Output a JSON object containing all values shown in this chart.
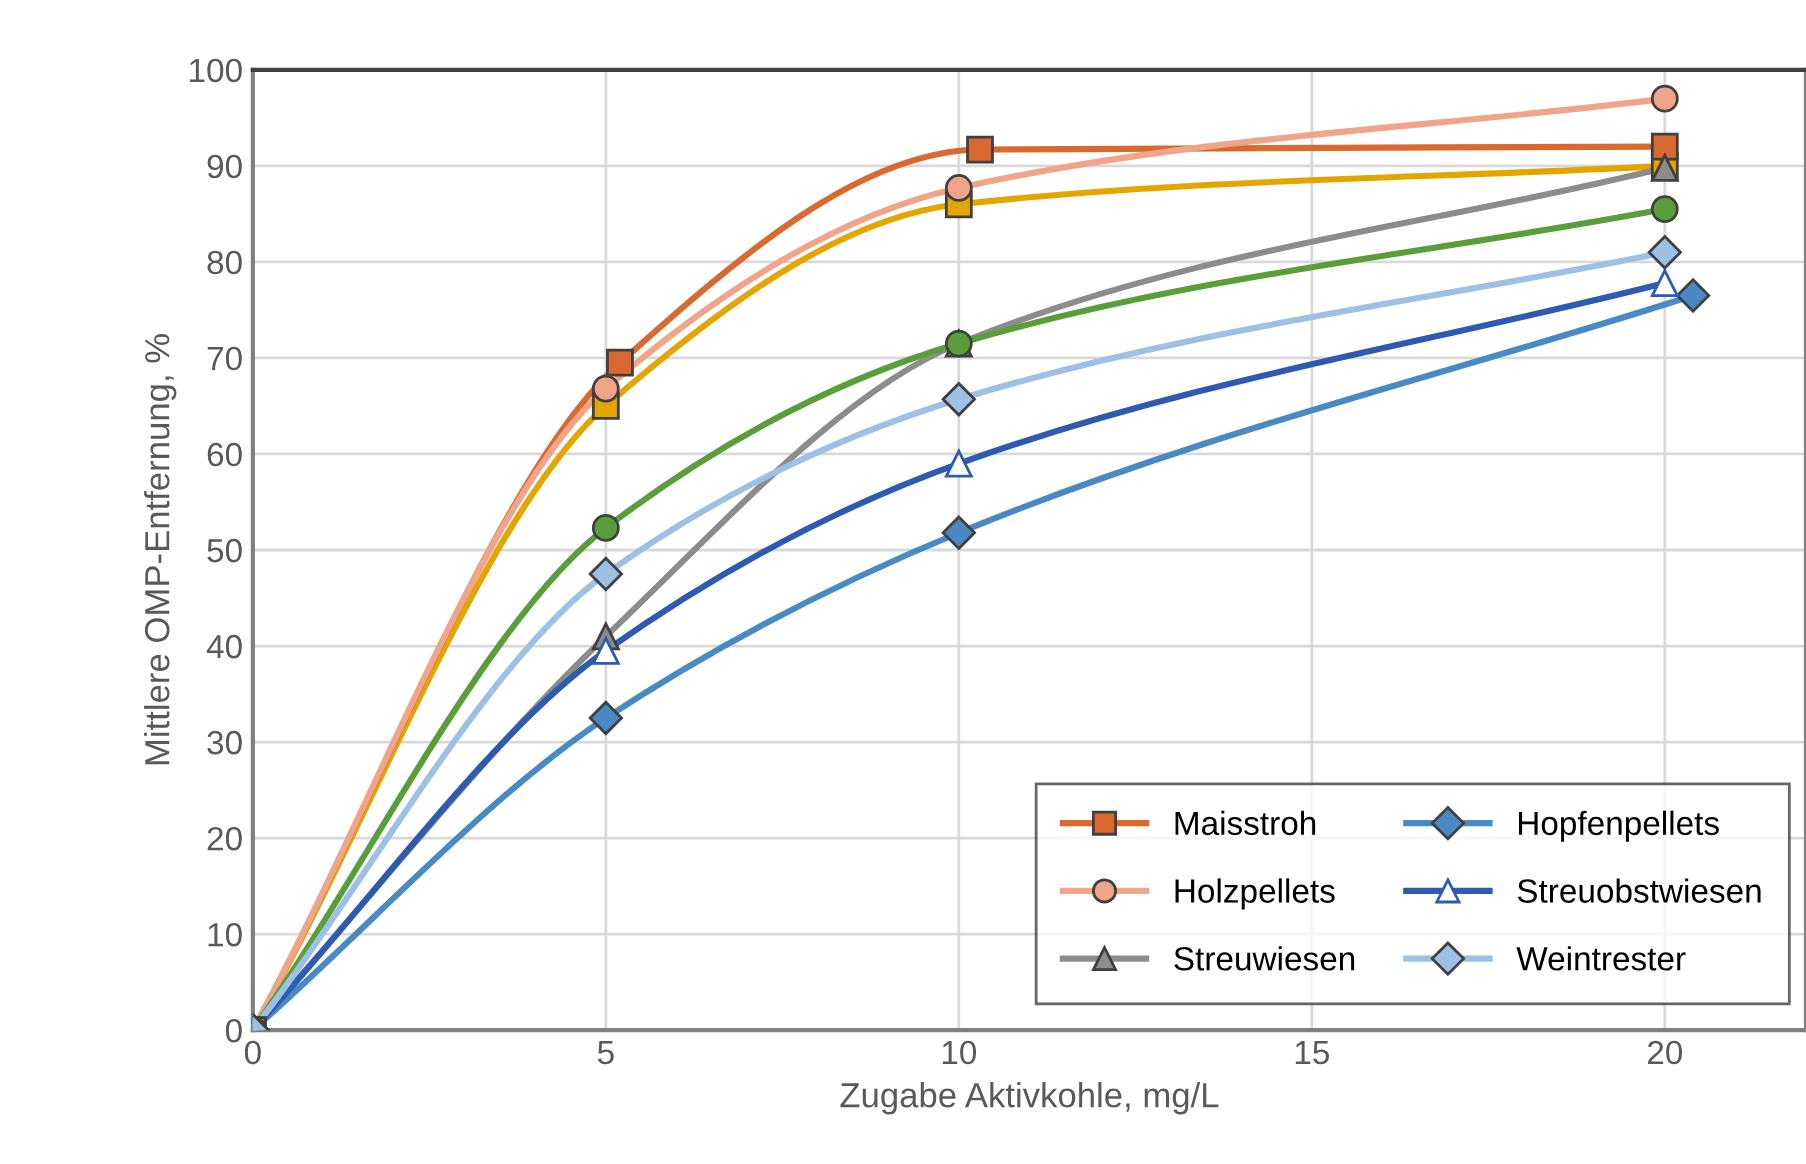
{
  "chart_data": {
    "type": "line",
    "xlabel": "Zugabe Aktivkohle, mg/L",
    "ylabel": "Mittlere OMP-Entfernung, %",
    "xlim": [
      0,
      22
    ],
    "ylim": [
      0,
      100
    ],
    "xticks": [
      0,
      5,
      10,
      15,
      20
    ],
    "yticks": [
      0,
      10,
      20,
      30,
      40,
      50,
      60,
      70,
      80,
      90,
      100
    ],
    "grid": true,
    "legend": "bottom right",
    "series": [
      {
        "color": "#e3a600",
        "marker": "square",
        "x": [
          0,
          5,
          10,
          20
        ],
        "values": [
          0,
          65,
          86,
          90
        ]
      },
      {
        "name": "Maisstroh",
        "color": "#d9692e",
        "marker": "square",
        "x": [
          0,
          5.2,
          10.3,
          20
        ],
        "values": [
          0,
          69.5,
          91.7,
          92
        ]
      },
      {
        "name": "Holzpellets",
        "color": "#f0a588",
        "marker": "circle",
        "x": [
          0,
          5,
          10,
          20
        ],
        "values": [
          0,
          66.8,
          87.7,
          97
        ]
      },
      {
        "name": "Streuwiesen",
        "color": "#8c8c8c",
        "marker": "triangle",
        "x": [
          0,
          5,
          10,
          20
        ],
        "values": [
          0,
          41,
          71.5,
          89.8
        ]
      },
      {
        "name": "Hopfenpellets",
        "color": "#4a8ac4",
        "marker": "diamond",
        "x": [
          0,
          5,
          10,
          20.4
        ],
        "values": [
          0,
          32.5,
          51.8,
          76.5
        ]
      },
      {
        "color": "#5a9e3a",
        "marker": "circle",
        "x": [
          0,
          5,
          10,
          20
        ],
        "values": [
          0,
          52.3,
          71.5,
          85.5
        ]
      },
      {
        "name": "Streuobstwiesen",
        "color": "#2e5bb0",
        "marker": "triangle",
        "x": [
          0,
          5,
          10,
          20
        ],
        "values": [
          0,
          39.5,
          59,
          77.8
        ]
      },
      {
        "name": "Weintrester",
        "color": "#9cc0e6",
        "marker": "diamond",
        "x": [
          0,
          5,
          10,
          20
        ],
        "values": [
          0,
          47.5,
          65.7,
          81
        ]
      }
    ]
  }
}
